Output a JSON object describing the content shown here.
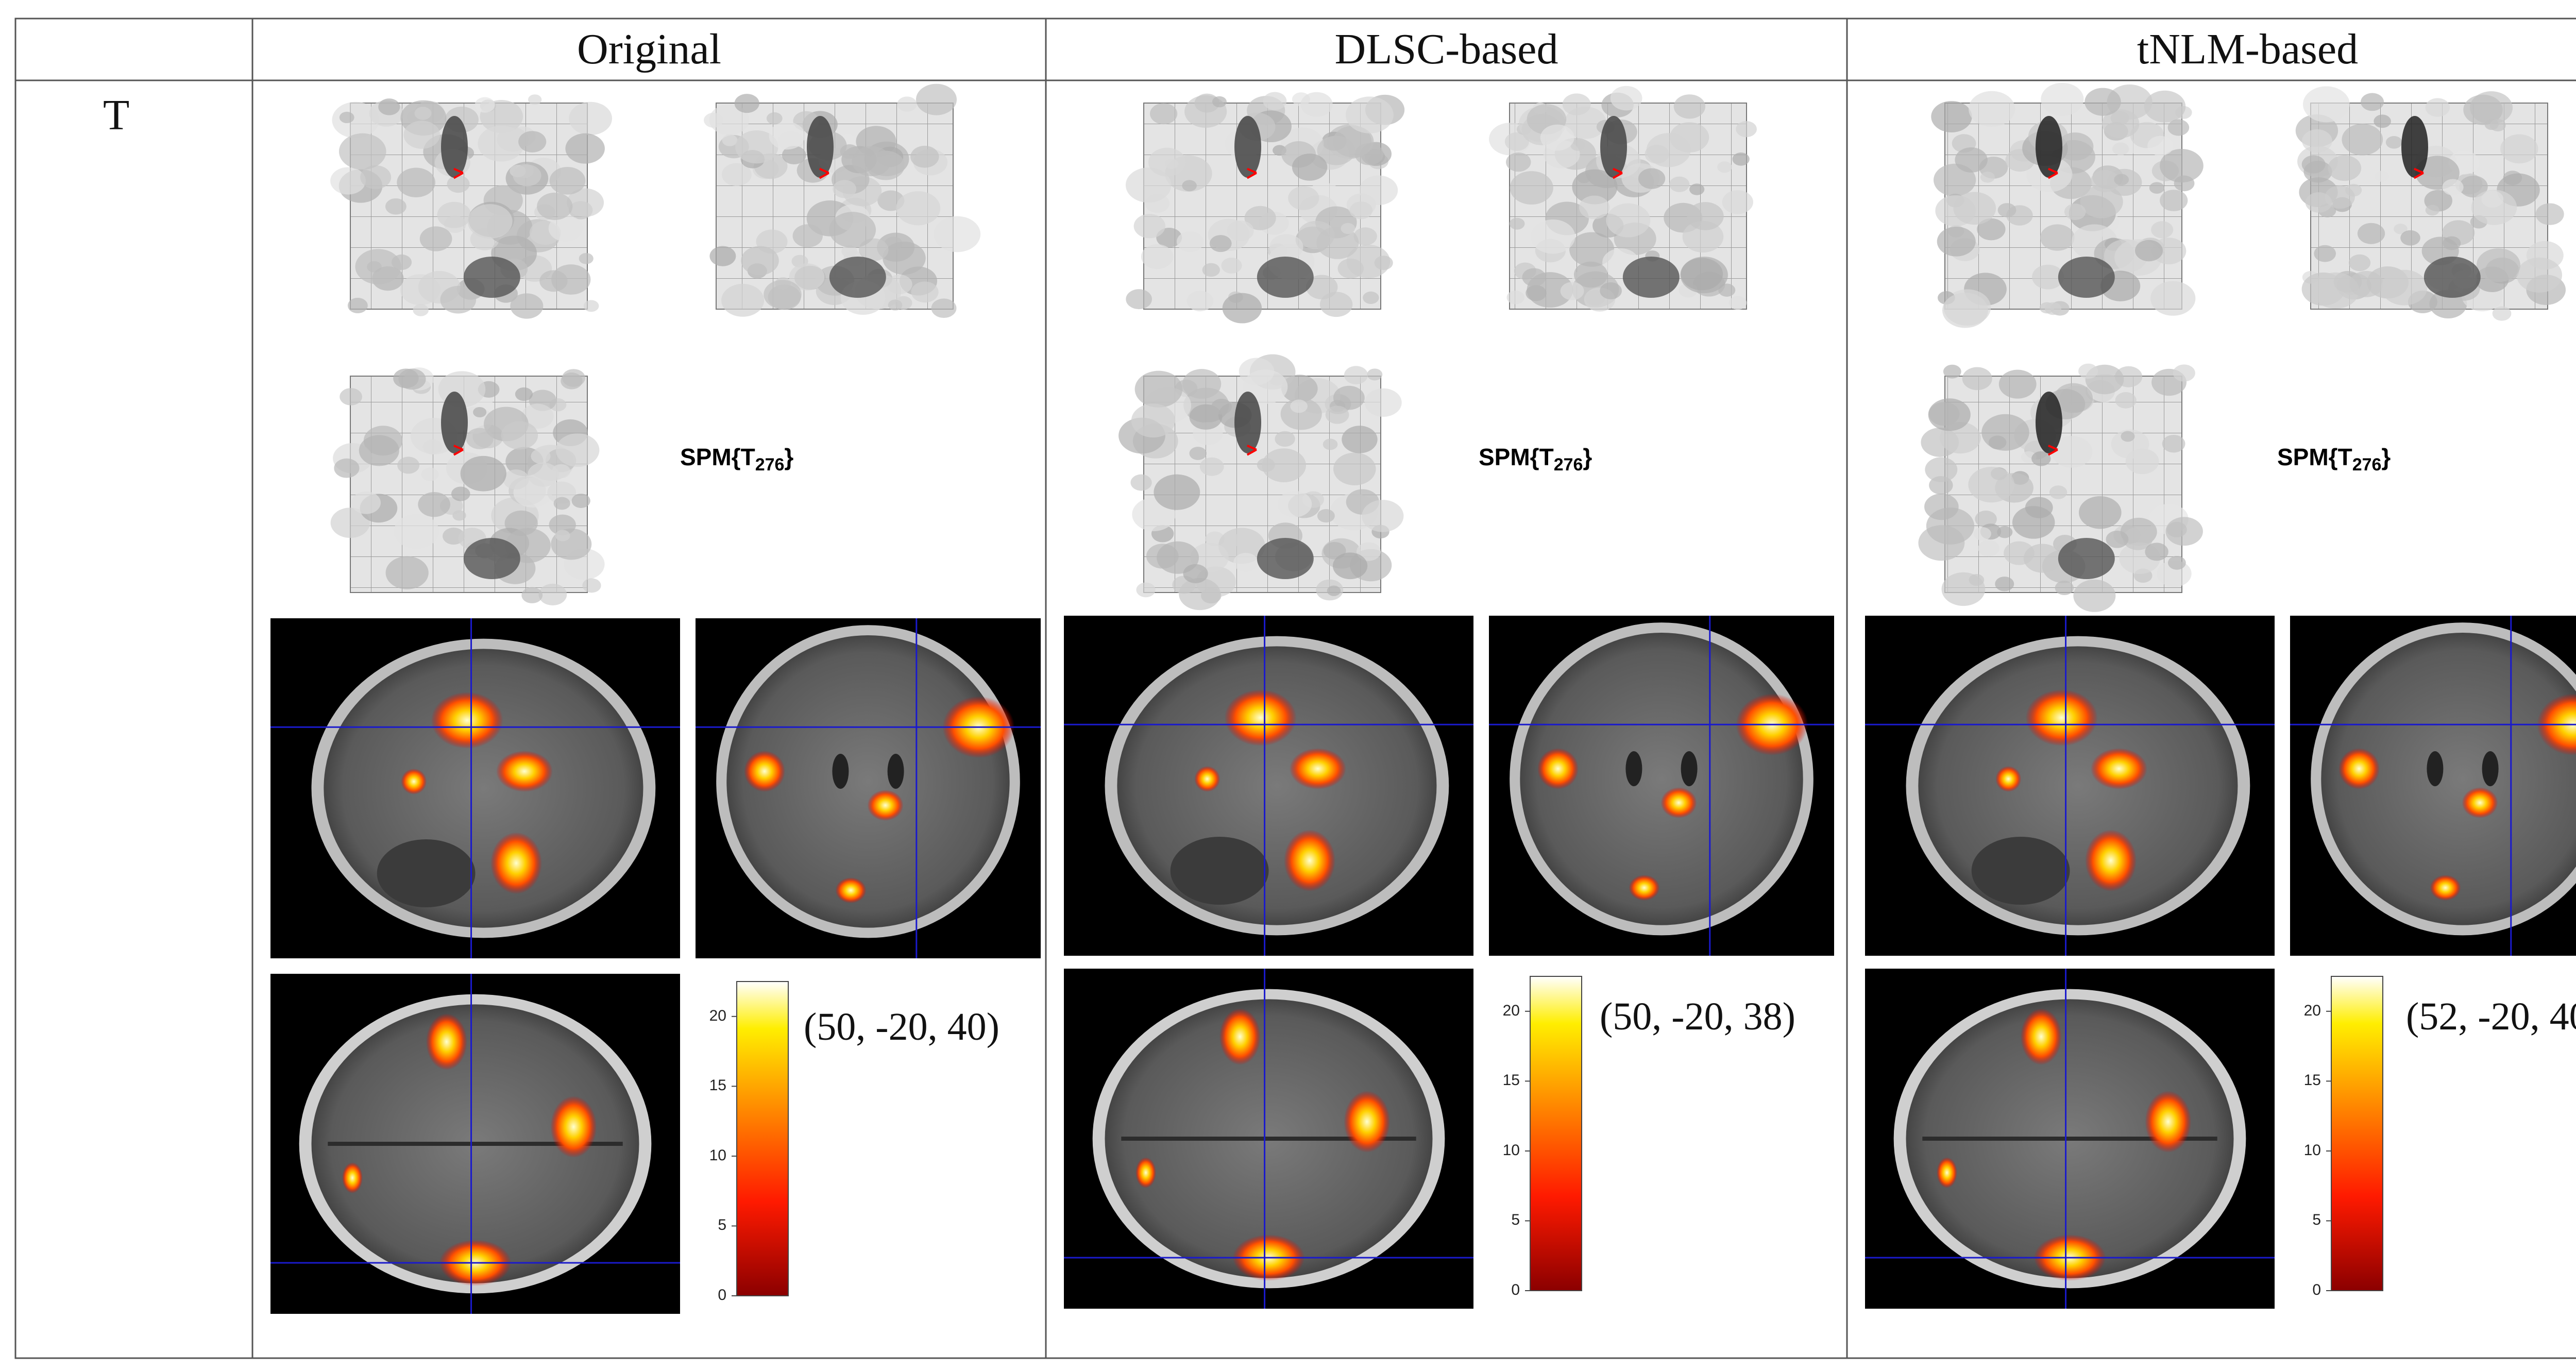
{
  "table": {
    "columns": [
      "",
      "Original",
      "DLSC-based",
      "tNLM-based"
    ],
    "row_label": "T"
  },
  "panels": [
    {
      "method": "Original",
      "spm_label": "SPM{T",
      "spm_sub": "276",
      "spm_close": "}",
      "coordinate": "(50, -20, 40)"
    },
    {
      "method": "DLSC-based",
      "spm_label": "SPM{T",
      "spm_sub": "276",
      "spm_close": "}",
      "coordinate": "(50, -20, 38)"
    },
    {
      "method": "tNLM-based",
      "spm_label": "SPM{T",
      "spm_sub": "276",
      "spm_close": "}",
      "coordinate": "(52, -20, 40)"
    }
  ],
  "colorbar": {
    "ticks": [
      "20",
      "15",
      "10",
      "5",
      "0"
    ],
    "colors": [
      "#8b0000",
      "#ff0000",
      "#ff7a00",
      "#ffe000",
      "#ffffff"
    ]
  },
  "colors": {
    "grid": "#000000",
    "mip_background": "#e6e6e6",
    "crosshair": "#1a1acc",
    "slice_background": "#000000"
  }
}
